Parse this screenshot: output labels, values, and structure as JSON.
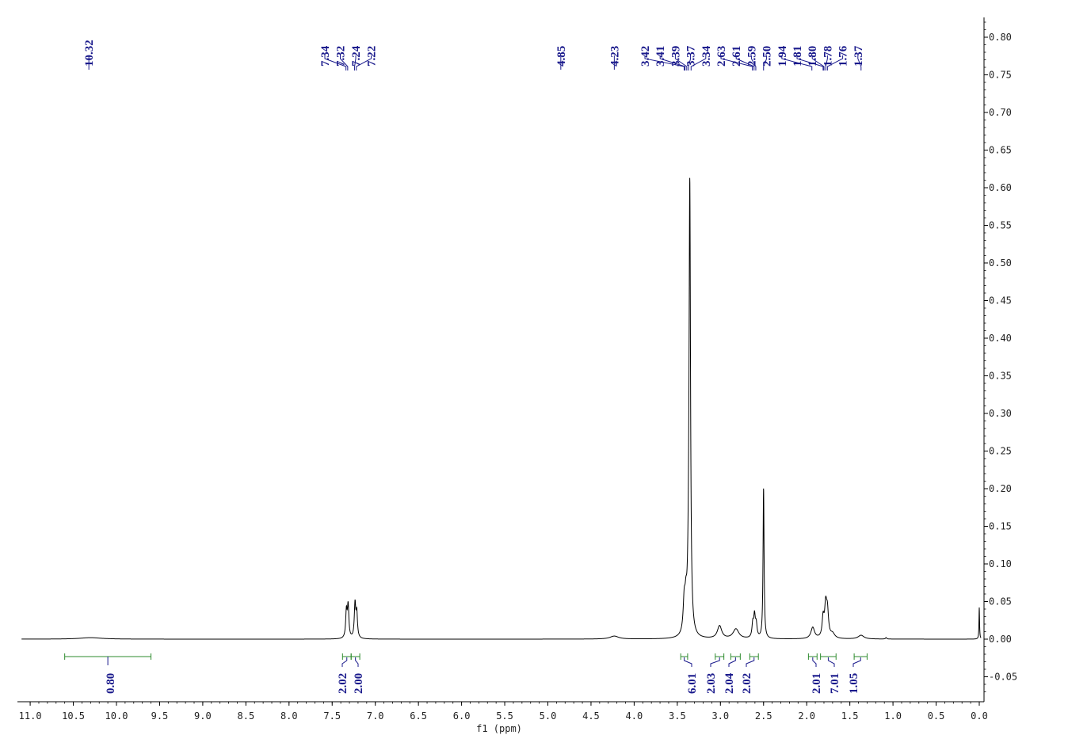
{
  "chart_data": {
    "type": "line",
    "title": "",
    "xlabel": "f1 (ppm)",
    "ylabel": "",
    "xlim": [
      11.1,
      0.0
    ],
    "ylim": [
      -0.08,
      0.83
    ],
    "x_reversed": true,
    "x_ticks": [
      "11.0",
      "10.5",
      "10.0",
      "9.5",
      "9.0",
      "8.5",
      "8.0",
      "7.5",
      "7.0",
      "6.5",
      "6.0",
      "5.5",
      "5.0",
      "4.5",
      "4.0",
      "3.5",
      "3.0",
      "2.5",
      "2.0",
      "1.5",
      "1.0",
      "0.5",
      "0.0"
    ],
    "x_tick_values": [
      11.0,
      10.5,
      10.0,
      9.5,
      9.0,
      8.5,
      8.0,
      7.5,
      7.0,
      6.5,
      6.0,
      5.5,
      5.0,
      4.5,
      4.0,
      3.5,
      3.0,
      2.5,
      2.0,
      1.5,
      1.0,
      0.5,
      0.0
    ],
    "y_ticks": [
      "0.80",
      "0.75",
      "0.70",
      "0.65",
      "0.60",
      "0.55",
      "0.50",
      "0.45",
      "0.40",
      "0.35",
      "0.30",
      "0.25",
      "0.20",
      "0.15",
      "0.10",
      "0.05",
      "0.00",
      "-0.05"
    ],
    "y_tick_values": [
      0.8,
      0.75,
      0.7,
      0.65,
      0.6,
      0.55,
      0.5,
      0.45,
      0.4,
      0.35,
      0.3,
      0.25,
      0.2,
      0.15,
      0.1,
      0.05,
      0.0,
      -0.05
    ],
    "peaks": [
      {
        "x": 10.3,
        "h": 0.002,
        "w": 0.15
      },
      {
        "x": 7.335,
        "h": 0.035,
        "w": 0.01
      },
      {
        "x": 7.315,
        "h": 0.042,
        "w": 0.01
      },
      {
        "x": 7.235,
        "h": 0.045,
        "w": 0.01
      },
      {
        "x": 7.215,
        "h": 0.032,
        "w": 0.01
      },
      {
        "x": 4.23,
        "h": 0.004,
        "w": 0.06
      },
      {
        "x": 3.42,
        "h": 0.04,
        "w": 0.014
      },
      {
        "x": 3.4,
        "h": 0.035,
        "w": 0.014
      },
      {
        "x": 3.37,
        "h": 0.04,
        "w": 0.014
      },
      {
        "x": 3.355,
        "h": 0.59,
        "w": 0.01
      },
      {
        "x": 3.01,
        "h": 0.017,
        "w": 0.03
      },
      {
        "x": 2.82,
        "h": 0.013,
        "w": 0.04
      },
      {
        "x": 2.625,
        "h": 0.018,
        "w": 0.011
      },
      {
        "x": 2.605,
        "h": 0.028,
        "w": 0.011
      },
      {
        "x": 2.585,
        "h": 0.017,
        "w": 0.011
      },
      {
        "x": 2.5,
        "h": 0.2,
        "w": 0.007
      },
      {
        "x": 1.93,
        "h": 0.015,
        "w": 0.025
      },
      {
        "x": 1.81,
        "h": 0.025,
        "w": 0.013
      },
      {
        "x": 1.78,
        "h": 0.04,
        "w": 0.015
      },
      {
        "x": 1.76,
        "h": 0.032,
        "w": 0.015
      },
      {
        "x": 1.7,
        "h": 0.006,
        "w": 0.03
      },
      {
        "x": 1.37,
        "h": 0.005,
        "w": 0.04
      },
      {
        "x": 1.08,
        "h": 0.002,
        "w": 0.008
      },
      {
        "x": 0.0,
        "h": 0.042,
        "w": 0.004
      }
    ],
    "peak_labels": [
      {
        "text": "10.32",
        "ppm": 10.32
      },
      {
        "text": "7.34",
        "ppm": 7.34
      },
      {
        "text": "7.32",
        "ppm": 7.32
      },
      {
        "text": "7.24",
        "ppm": 7.24
      },
      {
        "text": "7.22",
        "ppm": 7.22
      },
      {
        "text": "4.85",
        "ppm": 4.85
      },
      {
        "text": "4.23",
        "ppm": 4.23
      },
      {
        "text": "3.42",
        "ppm": 3.42
      },
      {
        "text": "3.41",
        "ppm": 3.41
      },
      {
        "text": "3.39",
        "ppm": 3.39
      },
      {
        "text": "3.37",
        "ppm": 3.37
      },
      {
        "text": "3.34",
        "ppm": 3.34
      },
      {
        "text": "2.63",
        "ppm": 2.63
      },
      {
        "text": "2.61",
        "ppm": 2.61
      },
      {
        "text": "2.59",
        "ppm": 2.59
      },
      {
        "text": "2.50",
        "ppm": 2.5
      },
      {
        "text": "1.94",
        "ppm": 1.94
      },
      {
        "text": "1.81",
        "ppm": 1.81
      },
      {
        "text": "1.80",
        "ppm": 1.8
      },
      {
        "text": "1.78",
        "ppm": 1.78
      },
      {
        "text": "1.76",
        "ppm": 1.76
      },
      {
        "text": "1.37",
        "ppm": 1.37
      }
    ],
    "integrals": [
      {
        "label": "0.80",
        "from": 10.6,
        "to": 9.6
      },
      {
        "label": "2.02",
        "from": 7.38,
        "to": 7.28
      },
      {
        "label": "2.00",
        "from": 7.28,
        "to": 7.18
      },
      {
        "label": "6.01",
        "from": 3.46,
        "to": 3.38
      },
      {
        "label": "2.03",
        "from": 3.06,
        "to": 2.96
      },
      {
        "label": "2.04",
        "from": 2.88,
        "to": 2.77
      },
      {
        "label": "2.02",
        "from": 2.66,
        "to": 2.56
      },
      {
        "label": "2.01",
        "from": 1.98,
        "to": 1.88
      },
      {
        "label": "7.01",
        "from": 1.84,
        "to": 1.66
      },
      {
        "label": "1.05",
        "from": 1.45,
        "to": 1.3
      }
    ],
    "colors": {
      "spectrum": "#000000",
      "peak_labels": "#1a1a8c",
      "integral_bars": "#2e8b2e",
      "integral_labels": "#1a1a8c",
      "axis": "#000000"
    }
  }
}
